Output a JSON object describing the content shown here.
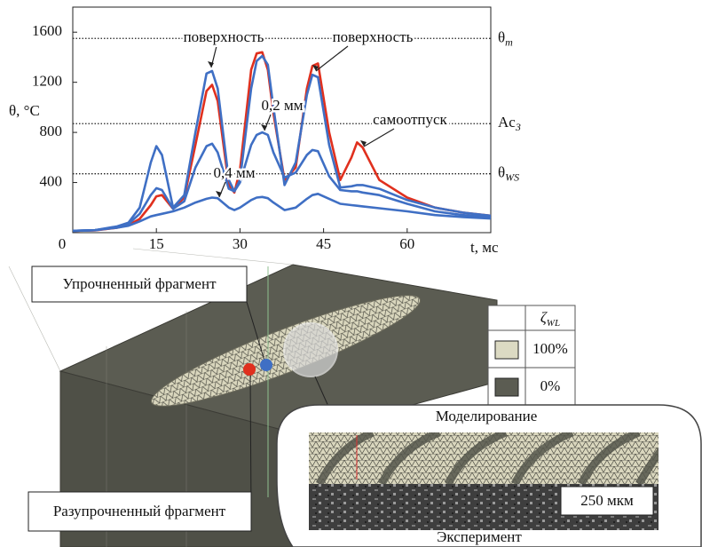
{
  "chart_data": {
    "type": "line",
    "y_label": "θ, °C",
    "x_label": "t, мс",
    "xlim": [
      0,
      75
    ],
    "ylim": [
      0,
      1800
    ],
    "xticks": [
      0,
      15,
      30,
      45,
      60
    ],
    "yticks": [
      400,
      800,
      1200,
      1600
    ],
    "x": [
      0,
      4,
      8,
      10,
      12,
      14,
      15,
      16,
      18,
      20,
      22,
      24,
      25,
      26,
      28,
      29,
      30,
      32,
      33,
      34,
      35,
      36,
      38,
      40,
      42,
      43,
      44,
      46,
      48,
      50,
      51,
      52,
      55,
      60,
      65,
      70,
      75
    ],
    "series": [
      {
        "color": "#e0301e",
        "values": [
          15,
          18,
          40,
          60,
          110,
          220,
          290,
          300,
          190,
          280,
          700,
          1130,
          1180,
          1050,
          380,
          320,
          500,
          1300,
          1430,
          1440,
          1300,
          950,
          420,
          520,
          1150,
          1330,
          1350,
          800,
          420,
          600,
          720,
          680,
          420,
          280,
          200,
          160,
          135
        ]
      },
      {
        "color": "#3f6fc4",
        "values": [
          15,
          20,
          50,
          80,
          200,
          560,
          690,
          620,
          200,
          300,
          800,
          1270,
          1290,
          1150,
          420,
          330,
          420,
          1150,
          1370,
          1410,
          1340,
          1000,
          380,
          560,
          1100,
          1260,
          1240,
          700,
          360,
          370,
          380,
          380,
          350,
          260,
          200,
          160,
          135
        ]
      },
      {
        "color": "#3f6fc4",
        "values": [
          15,
          20,
          45,
          70,
          150,
          300,
          355,
          340,
          190,
          250,
          520,
          690,
          710,
          640,
          350,
          330,
          400,
          700,
          780,
          800,
          780,
          640,
          440,
          480,
          620,
          660,
          650,
          450,
          340,
          330,
          330,
          320,
          300,
          230,
          170,
          140,
          120
        ]
      },
      {
        "color": "#3f6fc4",
        "values": [
          15,
          20,
          40,
          55,
          90,
          130,
          140,
          150,
          170,
          200,
          240,
          270,
          280,
          275,
          200,
          180,
          200,
          260,
          280,
          285,
          275,
          240,
          180,
          200,
          270,
          300,
          310,
          270,
          230,
          220,
          215,
          210,
          195,
          170,
          140,
          125,
          113
        ]
      }
    ],
    "reference_lines": [
      {
        "value": 1550,
        "symbol": "θ",
        "sub": "m"
      },
      {
        "value": 870,
        "symbol": "Ac",
        "sub": "3"
      },
      {
        "value": 470,
        "symbol": "θ",
        "sub": "WS"
      }
    ],
    "annotations": [
      "поверхность",
      "поверхность",
      "0,2 мм",
      "самоотпуск",
      "0,4 мм"
    ]
  },
  "figure": {
    "hardened_label": "Упрочненный фрагмент",
    "softened_label": "Разупрочненный фрагмент",
    "legend": {
      "symbol": "ζ",
      "sub": "WL",
      "rows": [
        "100%",
        "0%"
      ]
    },
    "simulation_label": "Моделирование",
    "experiment_label": "Эксперимент",
    "scale_bar": "250 мкм"
  }
}
